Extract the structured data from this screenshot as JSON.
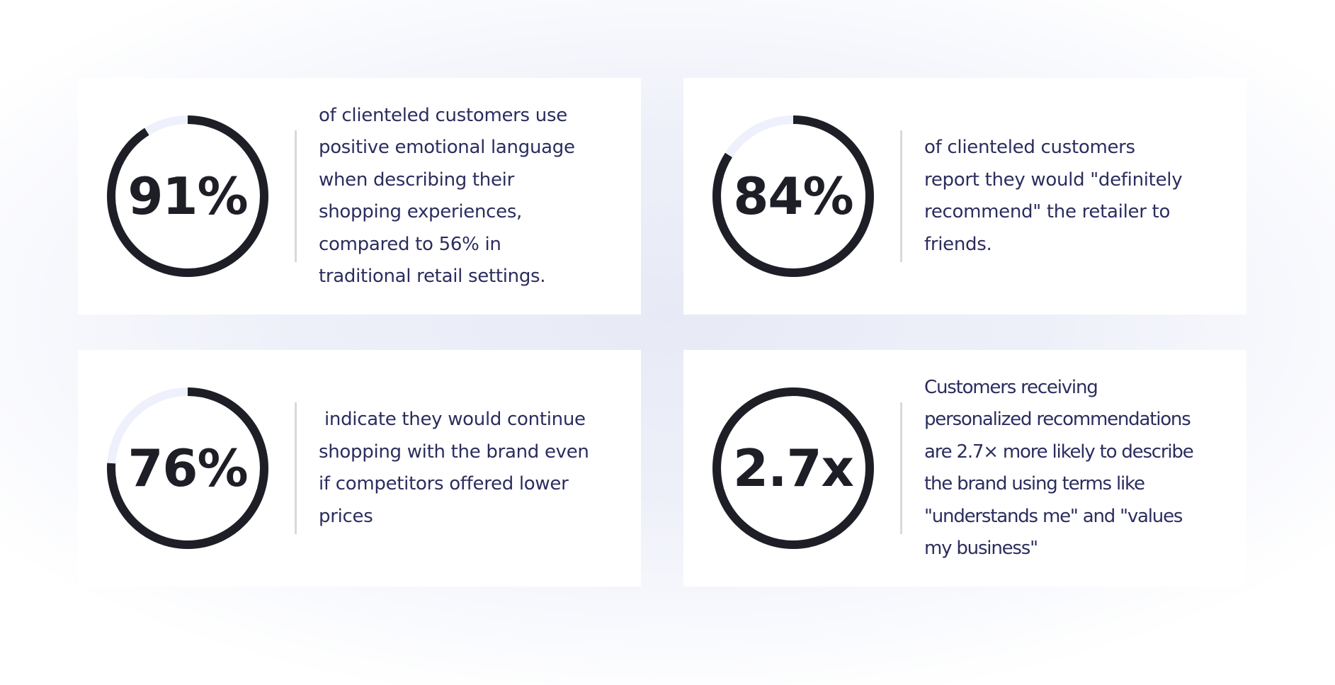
{
  "colors": {
    "ring_fill": "#1e1f26",
    "ring_track": "#eef0fc",
    "text": "#2b2d5e",
    "stat_text": "#1e1f26",
    "divider": "#d9d9dd",
    "card_bg": "#ffffff"
  },
  "stats": [
    {
      "value": "91%",
      "fraction": 0.91,
      "description": "of clienteled customers use\npositive emotional language\nwhen describing their\nshopping experiences,\ncompared to 56% in\ntraditional retail settings."
    },
    {
      "value": "84%",
      "fraction": 0.84,
      "description": "of clienteled customers\nreport they would \"definitely\nrecommend\" the retailer to\nfriends."
    },
    {
      "value": "76%",
      "fraction": 0.76,
      "description": " indicate they would continue\nshopping with the brand even\nif competitors offered lower\nprices"
    },
    {
      "value": "2.7x",
      "fraction": 1.0,
      "description": "Customers receiving\npersonalized recommendations\nare 2.7× more likely to describe\nthe brand using terms like\n\"understands me\" and \"values\nmy business\""
    }
  ]
}
